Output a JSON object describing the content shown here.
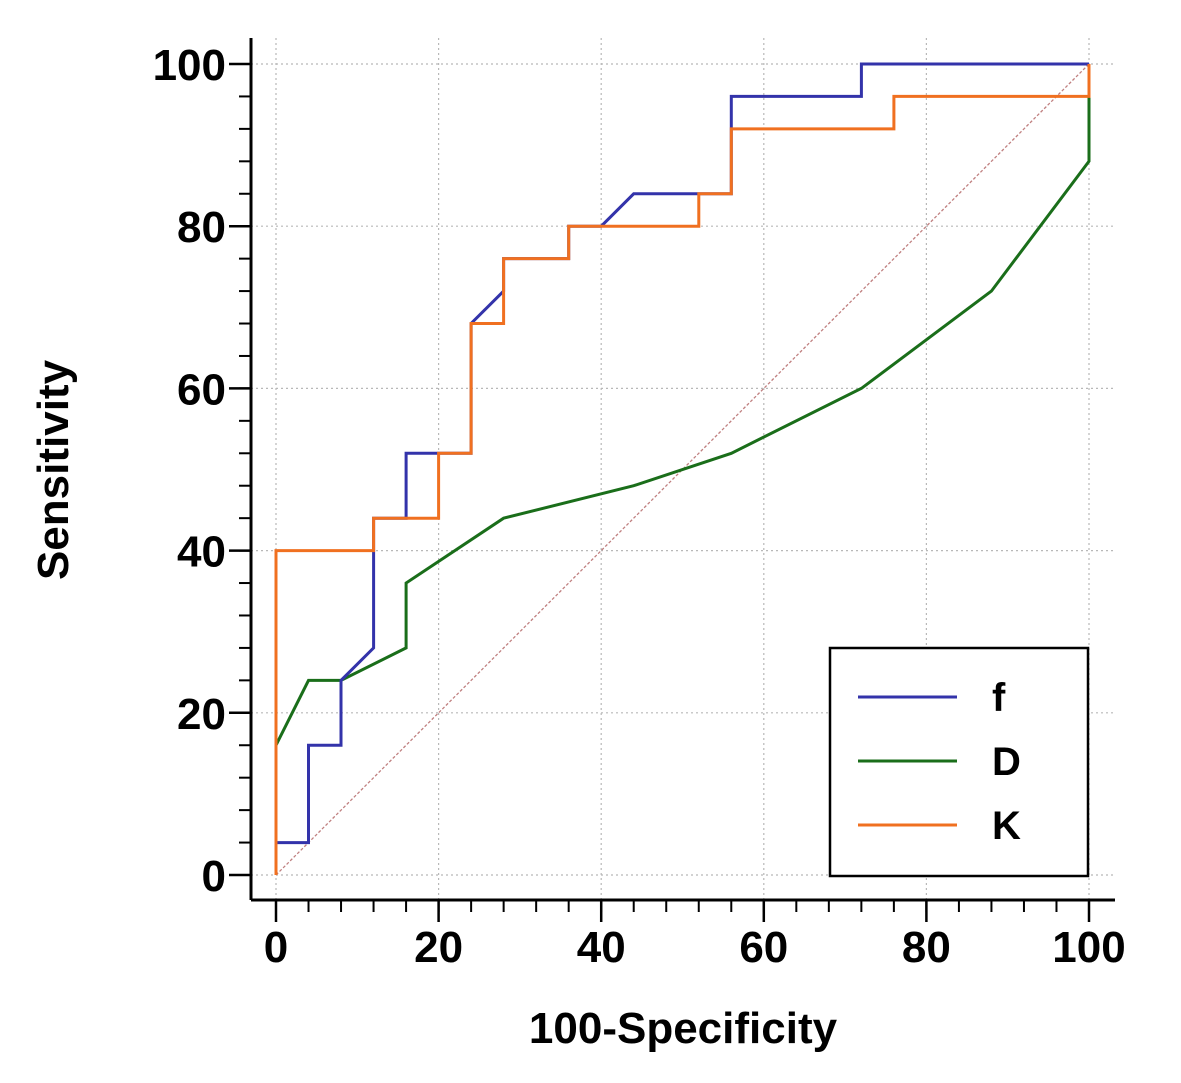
{
  "chart_data": {
    "type": "line",
    "title": "",
    "xlabel": "100-Specificity",
    "ylabel": "Sensitivity",
    "xlim": [
      0,
      100
    ],
    "ylim": [
      0,
      100
    ],
    "xticks": [
      0,
      20,
      40,
      60,
      80,
      100
    ],
    "yticks": [
      0,
      20,
      40,
      60,
      80,
      100
    ],
    "x_minor_step": 4,
    "y_minor_step": 4,
    "grid": true,
    "legend_position": "bottom-right",
    "series": [
      {
        "name": "f",
        "color": "#3333aa",
        "x": [
          0,
          0,
          4,
          4,
          8,
          8,
          12,
          12,
          16,
          16,
          20,
          20,
          24,
          24,
          28,
          28,
          32,
          36,
          36,
          40,
          44,
          52,
          56,
          56,
          72,
          72,
          100
        ],
        "y": [
          0,
          4,
          4,
          16,
          16,
          24,
          28,
          44,
          44,
          52,
          52,
          52,
          52,
          68,
          72,
          76,
          76,
          76,
          80,
          80,
          84,
          84,
          84,
          96,
          96,
          100,
          100
        ]
      },
      {
        "name": "D",
        "color": "#1a6e1a",
        "x": [
          0,
          0,
          4,
          8,
          16,
          16,
          28,
          44,
          56,
          72,
          88,
          100,
          100
        ],
        "y": [
          0,
          16,
          24,
          24,
          28,
          36,
          44,
          48,
          52,
          60,
          72,
          88,
          100
        ]
      },
      {
        "name": "K",
        "color": "#f07020",
        "x": [
          0,
          0,
          12,
          12,
          20,
          20,
          24,
          24,
          28,
          28,
          36,
          36,
          52,
          52,
          56,
          56,
          76,
          76,
          100,
          100
        ],
        "y": [
          0,
          40,
          40,
          44,
          44,
          52,
          52,
          68,
          68,
          76,
          76,
          80,
          80,
          84,
          84,
          92,
          92,
          96,
          96,
          100
        ]
      },
      {
        "name": "reference",
        "color": "#c08080",
        "dashed": true,
        "legend": false,
        "x": [
          0,
          100
        ],
        "y": [
          0,
          100
        ]
      }
    ]
  }
}
